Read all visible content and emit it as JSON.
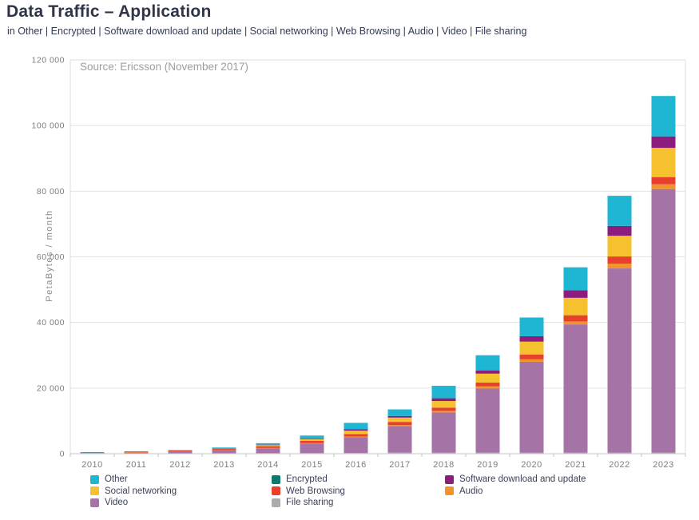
{
  "header": {
    "title": "Data Traffic – Application",
    "subtitle": "in Other | Encrypted | Software download and update | Social networking | Web Browsing | Audio | Video | File sharing"
  },
  "chart_data": {
    "type": "bar",
    "stacked": true,
    "source_note": "Source: Ericsson (November 2017)",
    "ylabel": "PetaBytes / month",
    "xlabel": "",
    "ylim": [
      0,
      120000
    ],
    "ytick_interval": 20000,
    "ytick_labels": [
      "0",
      "20 000",
      "40 000",
      "60 000",
      "80 000",
      "100 000",
      "120 000"
    ],
    "grid": true,
    "legend_position": "bottom",
    "categories": [
      "2010",
      "2011",
      "2012",
      "2013",
      "2014",
      "2015",
      "2016",
      "2017",
      "2018",
      "2019",
      "2020",
      "2021",
      "2022",
      "2023"
    ],
    "series_stacked_bottom_to_top": [
      {
        "name": "File sharing",
        "color": "#acacac",
        "values": [
          100,
          120,
          130,
          140,
          150,
          160,
          200,
          330,
          300,
          350,
          300,
          300,
          300,
          350
        ]
      },
      {
        "name": "Video",
        "color": "#a673a7",
        "values": [
          150,
          250,
          450,
          850,
          1500,
          2900,
          4800,
          8050,
          12250,
          19500,
          27700,
          39100,
          56150,
          80300
        ]
      },
      {
        "name": "Audio",
        "color": "#f2932b",
        "values": [
          20,
          30,
          40,
          60,
          90,
          140,
          250,
          320,
          500,
          650,
          750,
          900,
          1450,
          1450
        ]
      },
      {
        "name": "Web Browsing",
        "color": "#e7402d",
        "values": [
          100,
          160,
          250,
          400,
          550,
          700,
          750,
          1000,
          1000,
          1200,
          1500,
          1900,
          2200,
          2200
        ]
      },
      {
        "name": "Social networking",
        "color": "#f6c12f",
        "values": [
          30,
          60,
          100,
          180,
          330,
          550,
          1000,
          1300,
          2000,
          2700,
          3900,
          5300,
          6300,
          8900
        ]
      },
      {
        "name": "Software download and update",
        "color": "#8c1d7c",
        "values": [
          20,
          30,
          50,
          90,
          150,
          240,
          500,
          500,
          850,
          1000,
          1650,
          2300,
          3000,
          3500
        ]
      },
      {
        "name": "Encrypted",
        "color": "#0e7a6e",
        "values": [
          0,
          0,
          0,
          0,
          0,
          0,
          0,
          0,
          0,
          0,
          0,
          0,
          0,
          0
        ]
      },
      {
        "name": "Other",
        "color": "#1fb6d4",
        "values": [
          30,
          50,
          80,
          180,
          430,
          850,
          1900,
          2000,
          3800,
          4600,
          5700,
          7000,
          9200,
          12300
        ]
      }
    ],
    "totals": [
      450,
      700,
      1100,
      1900,
      3200,
      5540,
      9400,
      13500,
      20700,
      30000,
      41500,
      56800,
      78600,
      109000
    ],
    "legend_columns": [
      [
        "Other",
        "Social networking",
        "Video"
      ],
      [
        "Encrypted",
        "Web Browsing",
        "File sharing"
      ],
      [
        "Software download and update",
        "Audio"
      ]
    ]
  },
  "style_colors": {
    "title_text": "#303448",
    "legend_text": "#3b4158",
    "axis_text": "#7d7d7d",
    "grid_line": "#e2e2e2",
    "axis_line": "#c6c6c6",
    "plot_border": "#dedede",
    "source_text": "#9d9d9d"
  }
}
